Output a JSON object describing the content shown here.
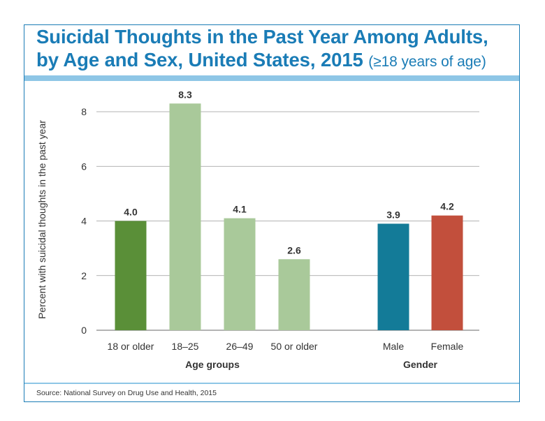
{
  "title_line1": "Suicidal Thoughts in the Past Year Among Adults,",
  "title_line2": "by Age and Sex, United States, 2015",
  "title_suffix": "(≥18 years of age)",
  "source": "Source: National Survey on Drug Use and Health, 2015",
  "chart_data": {
    "type": "bar",
    "ylabel": "Percent with suicidal thoughts in the past year",
    "ylim": [
      0,
      8.5
    ],
    "yticks": [
      0,
      2,
      4,
      6,
      8
    ],
    "grid": true,
    "groups": [
      {
        "label": "Age groups",
        "categories": [
          "18 or older",
          "18–25",
          "26–49",
          "50 or older"
        ],
        "values": [
          4.0,
          8.3,
          4.1,
          2.6
        ],
        "value_labels": [
          "4.0",
          "8.3",
          "4.1",
          "2.6"
        ],
        "colors": [
          "#5a8f38",
          "#a9c99a",
          "#a9c99a",
          "#a9c99a"
        ]
      },
      {
        "label": "Gender",
        "categories": [
          "Male",
          "Female"
        ],
        "values": [
          3.9,
          4.2
        ],
        "value_labels": [
          "3.9",
          "4.2"
        ],
        "colors": [
          "#137b98",
          "#c24f3c"
        ]
      }
    ]
  }
}
